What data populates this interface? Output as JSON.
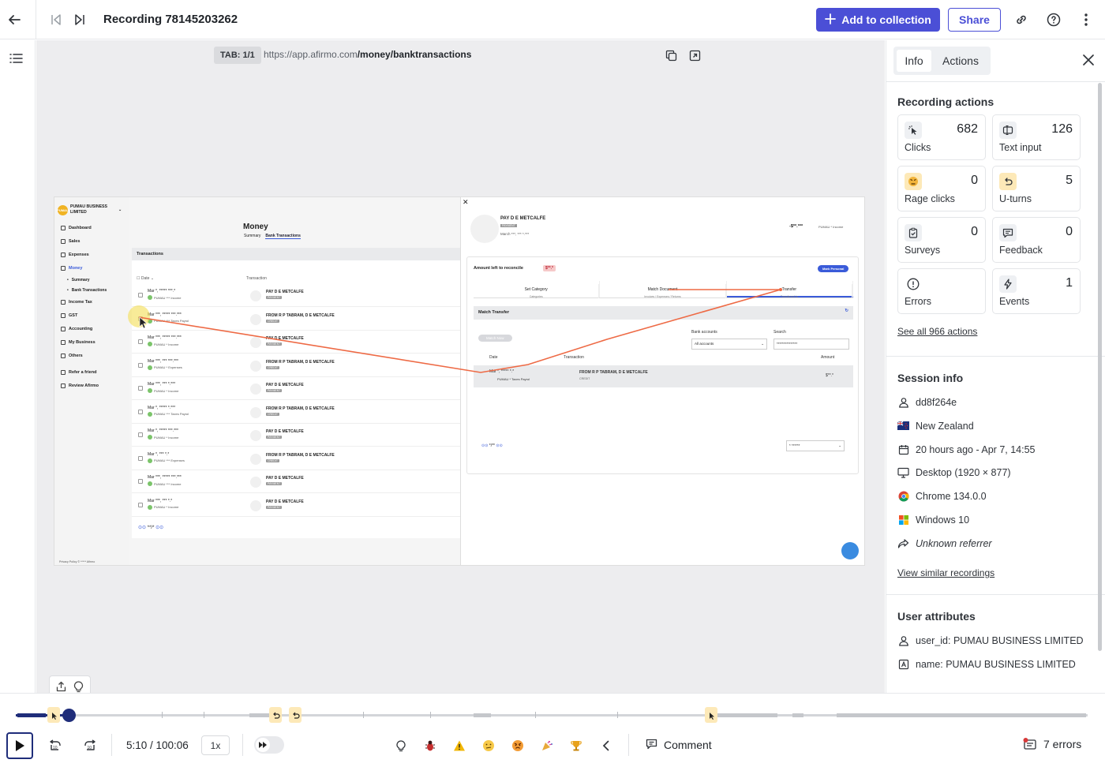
{
  "header": {
    "title": "Recording 78145203262",
    "add_label": "Add to collection",
    "share_label": "Share"
  },
  "viewer": {
    "tab_badge": "TAB: 1/1",
    "url_base": "https://app.afirmo.com",
    "url_path": "/money/banktransactions"
  },
  "replay": {
    "org_name": "PUMAU BUSINESS LIMITED",
    "nav": [
      {
        "label": "Dashboard",
        "sub": false,
        "active": false
      },
      {
        "label": "Sales",
        "sub": false,
        "active": false
      },
      {
        "label": "Expenses",
        "sub": false,
        "active": false
      },
      {
        "label": "Money",
        "sub": false,
        "active": true
      },
      {
        "label": "Summary",
        "sub": true,
        "active": false
      },
      {
        "label": "Bank Transactions",
        "sub": true,
        "active": false
      },
      {
        "label": "Income Tax",
        "sub": false,
        "active": false
      },
      {
        "label": "GST",
        "sub": false,
        "active": false
      },
      {
        "label": "Accounting",
        "sub": false,
        "active": false
      },
      {
        "label": "My Business",
        "sub": false,
        "active": false
      },
      {
        "label": "Others",
        "sub": false,
        "active": false
      },
      {
        "label": "Refer a friend",
        "sub": false,
        "active": false
      },
      {
        "label": "Review Afirmo",
        "sub": false,
        "active": false
      }
    ],
    "page_title": "Money",
    "sub_tabs": [
      "Summary",
      "Bank Transactions"
    ],
    "card_title": "Transactions",
    "col_date": "Date",
    "col_transaction": "Transaction",
    "rows": [
      {
        "date": "Mar *, ***** ***.*",
        "cat": "PUMAU *** Income",
        "name": "PAY D E METCALFE",
        "tag": "PAYMENT"
      },
      {
        "date": "Mar ***, ***** ***.***",
        "cat": "PUMAU *** Taxes Payrol",
        "name": "FROM R P TABRAM, D E METCALFE",
        "tag": "CREDIT"
      },
      {
        "date": "Mar ***, ***** ***.***",
        "cat": "PUMAU * Income",
        "name": "PAY D E METCALFE",
        "tag": "PAYMENT"
      },
      {
        "date": "Mar ***, *** ***.***",
        "cat": "PUMAU * Expenses",
        "name": "FROM R P TABRAM, D E METCALFE",
        "tag": "CREDIT"
      },
      {
        "date": "Mar ***, *** *.***",
        "cat": "PUMAU * Income",
        "name": "PAY D E METCALFE",
        "tag": "PAYMENT"
      },
      {
        "date": "Mar *, ***** *.***",
        "cat": "PUMAU *** Taxes Payrol",
        "name": "FROM R P TABRAM, D E METCALFE",
        "tag": "CREDIT"
      },
      {
        "date": "Mar *, ***** ***.***",
        "cat": "PUMAU * Income",
        "name": "PAY D E METCALFE",
        "tag": "PAYMENT"
      },
      {
        "date": "Mar *, *** *.*",
        "cat": "PUMAU *** Expenses",
        "name": "FROM R P TABRAM, D E METCALFE",
        "tag": "CREDIT"
      },
      {
        "date": "Mar ***, ***** ***.***",
        "cat": "PUMAU *** Income",
        "name": "PAY D E METCALFE",
        "tag": "PAYMENT"
      },
      {
        "date": "Mar ***, *** *.*",
        "cat": "PUMAU * Income",
        "name": "PAY D E METCALFE",
        "tag": "PAYMENT"
      }
    ],
    "pagination": "**/*",
    "footer": "Privacy Policy    © ***** Afirmo",
    "panel": {
      "name": "PAY D E METCALFE",
      "tag": "PAYMENT",
      "date": "March ***, *** *.***",
      "amount": "-$**.***",
      "income": "PUMAU * Income",
      "reconcile_label": "Amount left to reconcile",
      "reconcile_amount": "$**.*",
      "mark_btn": "Mark Personal",
      "tabs": [
        {
          "label": "Set Category",
          "sub": "Categories"
        },
        {
          "label": "Match Document",
          "sub": "Invoices / Expenses / Returns"
        },
        {
          "label": "Transfer",
          "sub": "Transferred to"
        }
      ],
      "match_title": "Match Transfer",
      "match_btn": "Match Now",
      "bank_label": "Bank accounts",
      "bank_value": "All accounts",
      "search_label": "Search",
      "search_value": "***************",
      "t_date": "Date",
      "t_transaction": "Transaction",
      "t_amount": "Amount",
      "row_date": "Mar *, ***** *.*",
      "row_cat": "PUMAU * Taxes Payrol",
      "row_name": "FROM R P TABRAM, D E METCALFE",
      "row_tag": "CREDIT",
      "row_amount": "$**.*",
      "pagination": "*/**",
      "per_page": "* ******"
    }
  },
  "sidebar": {
    "tab_info": "Info",
    "tab_actions": "Actions",
    "recording_actions_title": "Recording actions",
    "actions": [
      {
        "label": "Clicks",
        "count": "682",
        "icon": "click-icon",
        "color": "#eef0f3"
      },
      {
        "label": "Text input",
        "count": "126",
        "icon": "text-input-icon",
        "color": "#eef0f3"
      },
      {
        "label": "Rage clicks",
        "count": "0",
        "icon": "rage-face-icon",
        "color": "#fde9b8"
      },
      {
        "label": "U-turns",
        "count": "5",
        "icon": "u-turn-icon",
        "color": "#fde9b8"
      },
      {
        "label": "Surveys",
        "count": "0",
        "icon": "clipboard-check-icon",
        "color": "#eef0f3"
      },
      {
        "label": "Feedback",
        "count": "0",
        "icon": "feedback-icon",
        "color": "#eef0f3"
      },
      {
        "label": "Errors",
        "count": "",
        "icon": "error-icon",
        "color": "#ffffff"
      },
      {
        "label": "Events",
        "count": "1",
        "icon": "event-bolt-icon",
        "color": "#eef0f3"
      }
    ],
    "see_all": "See all 966 actions",
    "session_title": "Session info",
    "session": [
      {
        "icon": "user-icon",
        "text": "dd8f264e",
        "italic": false
      },
      {
        "icon": "nz-flag-icon",
        "text": "New Zealand",
        "italic": false
      },
      {
        "icon": "calendar-icon",
        "text": "20 hours ago - Apr 7, 14:55",
        "italic": false
      },
      {
        "icon": "desktop-icon",
        "text": "Desktop (1920 × 877)",
        "italic": false
      },
      {
        "icon": "chrome-icon",
        "text": "Chrome 134.0.0",
        "italic": false
      },
      {
        "icon": "windows-icon",
        "text": "Windows 10",
        "italic": false
      },
      {
        "icon": "referrer-icon",
        "text": "Unknown referrer",
        "italic": true
      }
    ],
    "view_similar": "View similar recordings",
    "user_attr_title": "User attributes",
    "user_attrs": [
      {
        "icon": "user-icon",
        "text": "user_id: PUMAU BUSINESS LIMITED"
      },
      {
        "icon": "attribute-icon",
        "text": "name: PUMAU BUSINESS LIMITED"
      }
    ]
  },
  "player": {
    "progress": 0.05,
    "time": "5:10 / 100:06",
    "speed": "1x",
    "comment_label": "Comment",
    "errors_label": "7 errors",
    "event_filters": [
      "lightbulb-icon",
      "bug-icon",
      "warning-icon",
      "confused-face-icon",
      "angry-face-icon",
      "party-popper-icon",
      "trophy-icon"
    ]
  }
}
